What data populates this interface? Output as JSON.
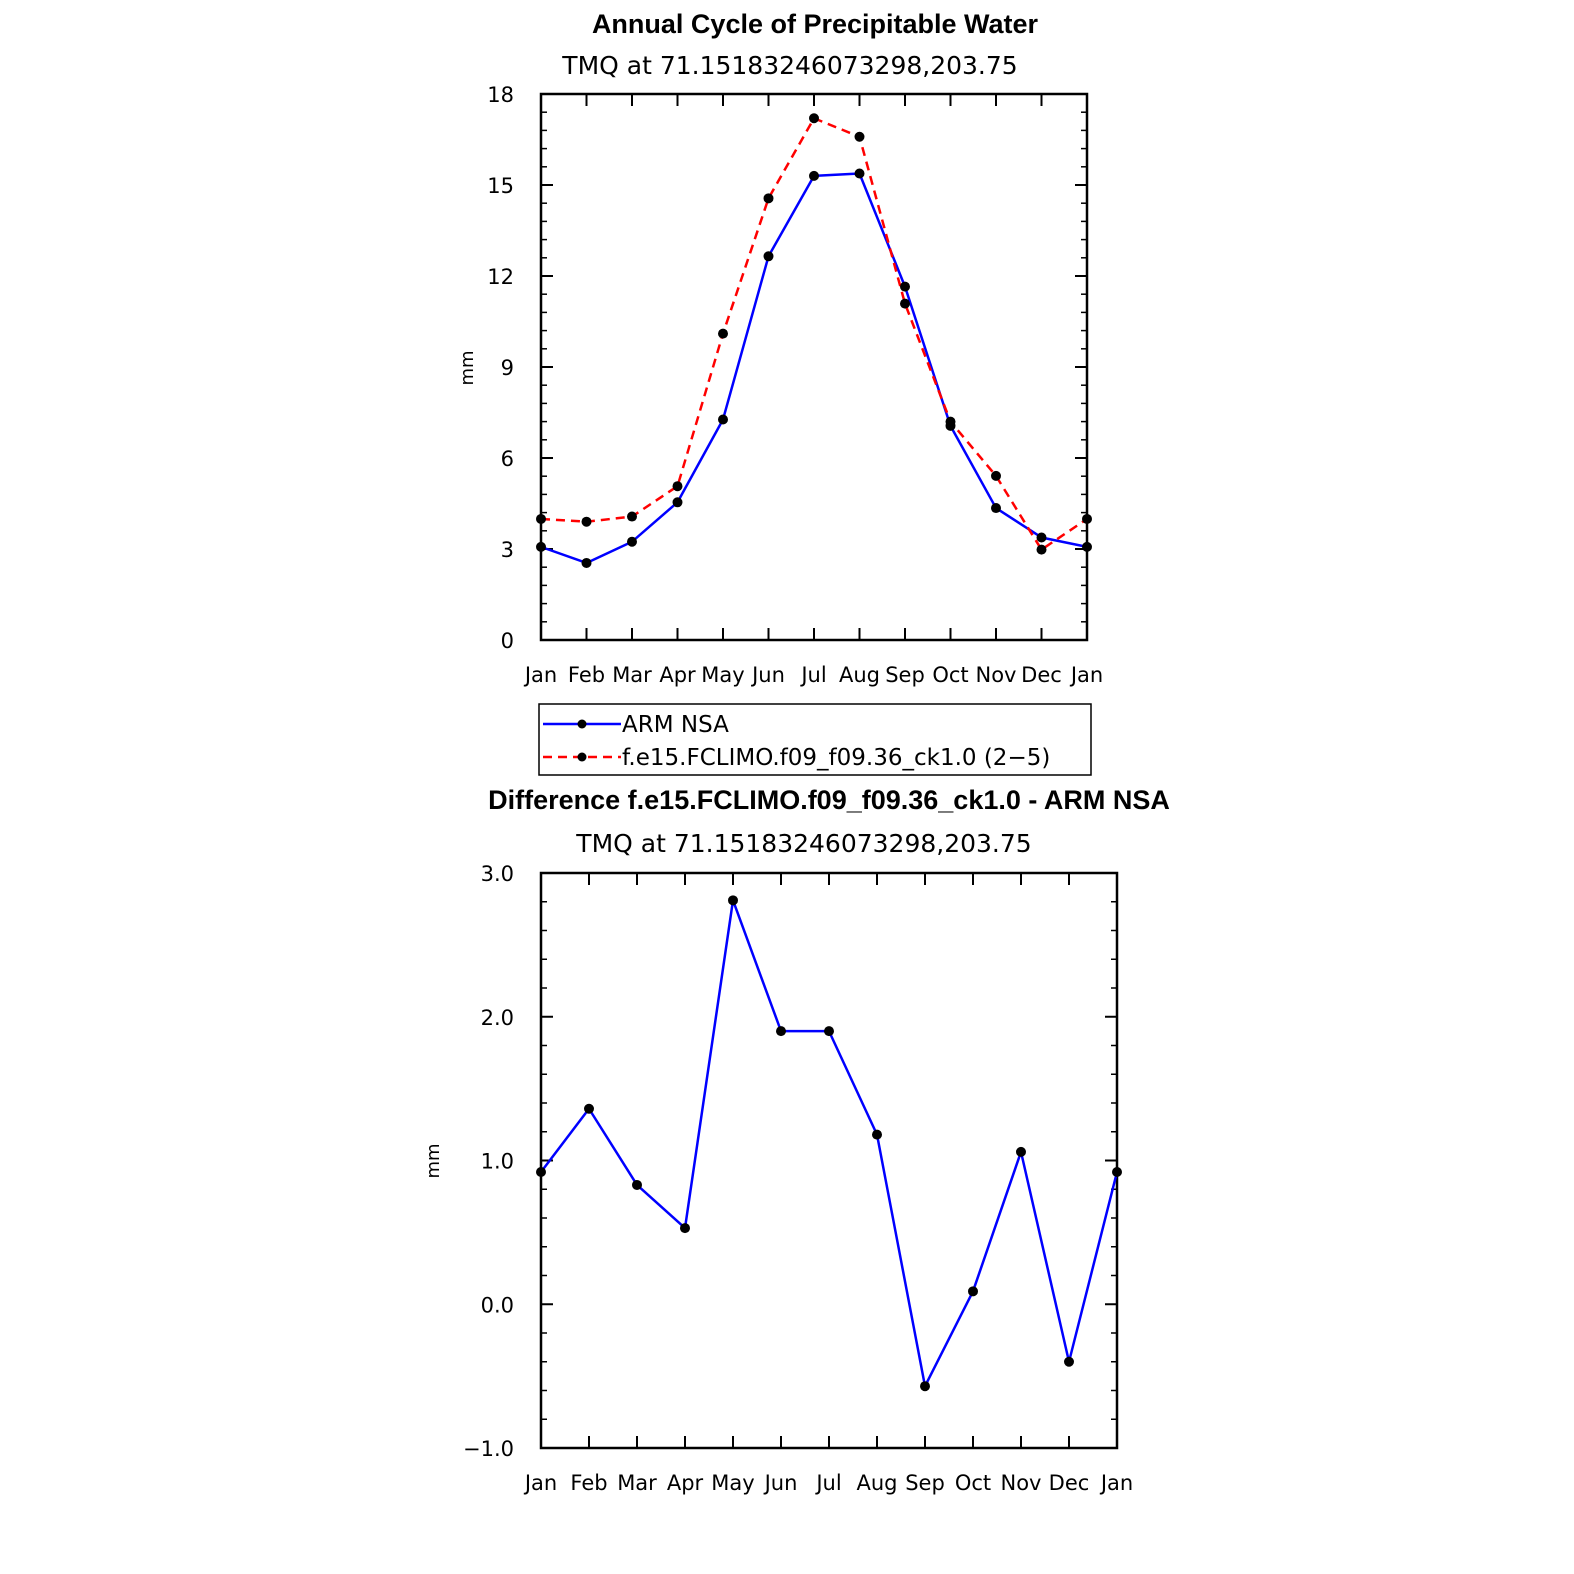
{
  "chart_data": [
    {
      "type": "line",
      "title": "Annual Cycle of Precipitable Water",
      "subtitle": "TMQ at 71.15183246073298,203.75",
      "xlabel": "",
      "ylabel": "mm",
      "categories": [
        "Jan",
        "Feb",
        "Mar",
        "Apr",
        "May",
        "Jun",
        "Jul",
        "Aug",
        "Sep",
        "Oct",
        "Nov",
        "Dec",
        "Jan"
      ],
      "ylim": [
        0,
        18
      ],
      "yticks": [
        "0",
        "3",
        "6",
        "9",
        "12",
        "15",
        "18"
      ],
      "series": [
        {
          "name": "ARM NSA",
          "color": "#0000ff",
          "dash": false,
          "values": [
            3.07,
            2.54,
            3.24,
            4.54,
            7.27,
            12.65,
            15.3,
            15.38,
            11.65,
            7.06,
            4.35,
            3.38,
            3.07
          ]
        },
        {
          "name": "f.e15.FCLIMO.f09_f09.36_ck1.0 (2−5)",
          "color": "#ff0000",
          "dash": true,
          "values": [
            3.99,
            3.9,
            4.07,
            5.07,
            10.1,
            14.56,
            17.2,
            16.59,
            11.09,
            7.2,
            5.41,
            2.98,
            3.99
          ]
        }
      ],
      "legend": "bottom"
    },
    {
      "type": "line",
      "title": "Difference f.e15.FCLIMO.f09_f09.36_ck1.0 - ARM NSA",
      "subtitle": "TMQ at 71.15183246073298,203.75",
      "xlabel": "",
      "ylabel": "mm",
      "categories": [
        "Jan",
        "Feb",
        "Mar",
        "Apr",
        "May",
        "Jun",
        "Jul",
        "Aug",
        "Sep",
        "Oct",
        "Nov",
        "Dec",
        "Jan"
      ],
      "ylim": [
        -1.0,
        3.0
      ],
      "yticks": [
        "−1.0",
        "0.0",
        "1.0",
        "2.0",
        "3.0"
      ],
      "series": [
        {
          "name": "difference",
          "color": "#0000ff",
          "dash": false,
          "values": [
            0.92,
            1.36,
            0.83,
            0.53,
            2.81,
            1.9,
            1.9,
            1.18,
            -0.57,
            0.09,
            1.06,
            -0.4,
            0.92
          ]
        }
      ]
    }
  ]
}
